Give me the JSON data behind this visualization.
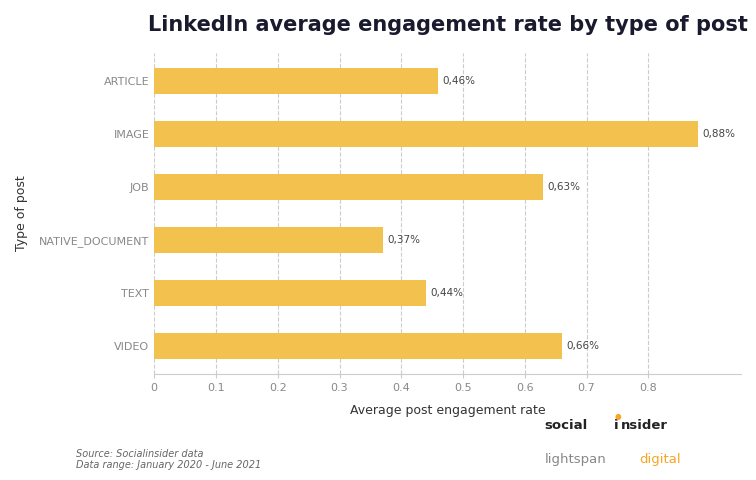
{
  "title": "LinkedIn average engagement rate by type of post",
  "categories": [
    "VIDEO",
    "TEXT",
    "NATIVE_DOCUMENT",
    "JOB",
    "IMAGE",
    "ARTICLE"
  ],
  "values": [
    0.66,
    0.44,
    0.37,
    0.63,
    0.88,
    0.46
  ],
  "labels": [
    "0,66%",
    "0,44%",
    "0,37%",
    "0,63%",
    "0,88%",
    "0,46%"
  ],
  "bar_color": "#F2C14E",
  "xlabel": "Average post engagement rate",
  "ylabel": "Type of post",
  "xlim": [
    0,
    0.95
  ],
  "xticks": [
    0,
    0.1,
    0.2,
    0.3,
    0.4,
    0.5,
    0.6,
    0.7,
    0.8
  ],
  "source_text": "Source: Socialinsider data\nData range: January 2020 - June 2021",
  "background_color": "#ffffff",
  "title_fontsize": 15,
  "label_fontsize": 7.5,
  "tick_fontsize": 8,
  "axis_label_fontsize": 9,
  "bar_height": 0.5,
  "brand1_prefix": "social",
  "brand1_i": "i",
  "brand1_suffix": "nsider",
  "brand2_gray": "lightspan",
  "brand2_orange": "digital",
  "brand_orange": "#F5A623",
  "brand_dark": "#222222",
  "brand_gray": "#888888"
}
